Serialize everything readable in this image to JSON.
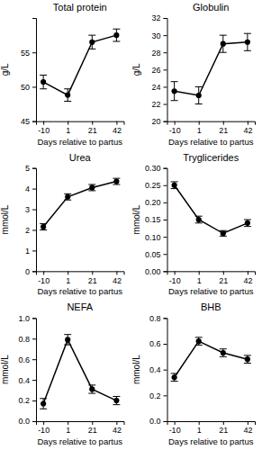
{
  "chart_data": [
    {
      "type": "line",
      "title": "Total protein",
      "y_label": "g/L",
      "x_label": "Days relative to partus",
      "categories": [
        "-10",
        "1",
        "21",
        "42"
      ],
      "values": [
        50.7,
        48.8,
        56.5,
        57.5
      ],
      "errors": [
        1.0,
        0.9,
        1.0,
        0.9
      ],
      "ylim": [
        45,
        60
      ],
      "yticks": [
        45,
        50,
        55
      ],
      "color": "#000000",
      "marker": "circle"
    },
    {
      "type": "line",
      "title": "Globulin",
      "y_label": "g/L",
      "x_label": "Days relative to partus",
      "categories": [
        "-10",
        "1",
        "21",
        "42"
      ],
      "values": [
        23.5,
        23.0,
        29.0,
        29.2
      ],
      "errors": [
        1.1,
        1.0,
        1.0,
        1.0
      ],
      "ylim": [
        20,
        32
      ],
      "yticks": [
        20,
        22,
        24,
        26,
        28,
        30,
        32
      ],
      "color": "#000000",
      "marker": "circle"
    },
    {
      "type": "line",
      "title": "Urea",
      "y_label": "mmol/L",
      "x_label": "Days relative to partus",
      "categories": [
        "-10",
        "1",
        "21",
        "42"
      ],
      "values": [
        2.15,
        3.6,
        4.05,
        4.35
      ],
      "errors": [
        0.15,
        0.15,
        0.15,
        0.15
      ],
      "ylim": [
        0,
        5
      ],
      "yticks": [
        0,
        1,
        2,
        3,
        4,
        5
      ],
      "color": "#000000",
      "marker": "circle"
    },
    {
      "type": "line",
      "title": "Tryglicerides",
      "y_label": "mmol/L",
      "x_label": "Days relative to partus",
      "categories": [
        "-10",
        "1",
        "21",
        "42"
      ],
      "values": [
        0.25,
        0.15,
        0.11,
        0.14
      ],
      "errors": [
        0.01,
        0.01,
        0.008,
        0.01
      ],
      "ylim": [
        0,
        0.3
      ],
      "yticks": [
        {
          "value": 0,
          "label": "0.00"
        },
        {
          "value": 0.05,
          "label": "0.05"
        },
        {
          "value": 0.1,
          "label": "0.10"
        },
        {
          "value": 0.15,
          "label": "0.15"
        },
        {
          "value": 0.2,
          "label": "0.20"
        },
        {
          "value": 0.25,
          "label": "0.25"
        },
        {
          "value": 0.3,
          "label": "0.30"
        }
      ],
      "color": "#000000",
      "marker": "circle"
    },
    {
      "type": "line",
      "title": "NEFA",
      "y_label": "mmol/L",
      "x_label": "Days relative to partus",
      "categories": [
        "-10",
        "1",
        "21",
        "42"
      ],
      "values": [
        0.17,
        0.79,
        0.31,
        0.2
      ],
      "errors": [
        0.05,
        0.05,
        0.04,
        0.04
      ],
      "ylim": [
        0,
        1
      ],
      "yticks": [
        {
          "value": 0,
          "label": "0.0"
        },
        0.2,
        0.4,
        0.6,
        0.8,
        {
          "value": 1,
          "label": "1.0"
        }
      ],
      "color": "#000000",
      "marker": "circle"
    },
    {
      "type": "line",
      "title": "BHB",
      "y_label": "mmol/L",
      "x_label": "Days relative to partus",
      "categories": [
        "-10",
        "1",
        "21",
        "42"
      ],
      "values": [
        0.34,
        0.62,
        0.53,
        0.48
      ],
      "errors": [
        0.03,
        0.03,
        0.03,
        0.03
      ],
      "ylim": [
        0,
        0.8
      ],
      "yticks": [
        {
          "value": 0,
          "label": "0.0"
        },
        0.2,
        0.4,
        0.6,
        0.8
      ],
      "color": "#000000",
      "marker": "circle"
    }
  ]
}
